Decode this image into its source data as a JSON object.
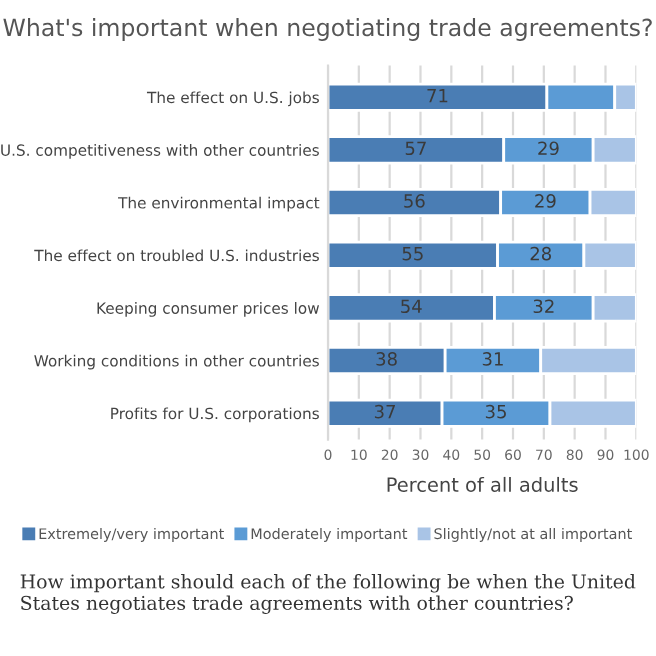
{
  "chart_data": {
    "type": "bar",
    "orientation": "horizontal",
    "stacked": true,
    "title": "What's important when negotiating trade agreements?",
    "categories": [
      "The effect on U.S. jobs",
      "U.S. competitiveness with other countries",
      "The environmental impact",
      "The effect on troubled U.S. industries",
      "Keeping consumer prices low",
      "Working conditions in other countries",
      "Profits for U.S. corporations"
    ],
    "series": [
      {
        "name": "Extremely/very important",
        "color": "#4a7db4",
        "values": [
          71,
          57,
          56,
          55,
          54,
          38,
          37
        ],
        "value_labels": [
          "71",
          "57",
          "56",
          "55",
          "54",
          "38",
          "37"
        ]
      },
      {
        "name": "Moderately important",
        "color": "#5b9bd5",
        "values": [
          22,
          29,
          29,
          28,
          32,
          31,
          35
        ],
        "value_labels": [
          null,
          "29",
          "29",
          "28",
          "32",
          "31",
          "35"
        ]
      },
      {
        "name": "Slightly/not at all important",
        "color": "#a9c4e6",
        "values": [
          7,
          14,
          15,
          17,
          14,
          31,
          28
        ],
        "value_labels": [
          null,
          null,
          null,
          null,
          null,
          null,
          null
        ]
      }
    ],
    "xlabel": "Percent of all adults",
    "xlim": [
      0,
      100
    ],
    "xticks": [
      0,
      10,
      20,
      30,
      40,
      50,
      60,
      70,
      80,
      90,
      100
    ],
    "grid": "x",
    "legend": "bottom",
    "annotations": [
      "How important should each of the following be when the United States negotiates trade agreements with other countries?"
    ]
  }
}
